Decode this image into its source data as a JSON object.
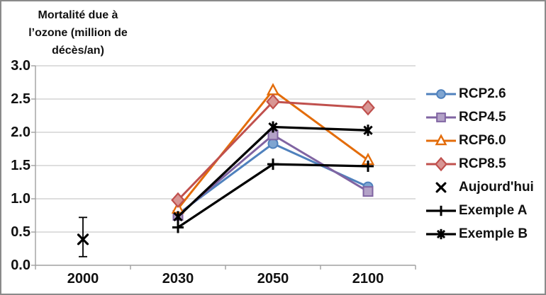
{
  "chart_data": {
    "type": "line",
    "title": "Mortalité due à l’ozone (million de décès/an)",
    "title_lines": [
      "Mortalité due à",
      "l’ozone (million de",
      "décès/an)"
    ],
    "categories": [
      "2000",
      "2030",
      "2050",
      "2100"
    ],
    "xlabel": "",
    "ylabel": "Mortalité due à l’ozone (million de décès/an)",
    "ylim": [
      0.0,
      3.0
    ],
    "ytick_step": 0.5,
    "yticks": [
      "3.0",
      "2.5",
      "2.0",
      "1.5",
      "1.0",
      "0.5",
      "0.0"
    ],
    "grid": true,
    "legend_position": "right",
    "series": [
      {
        "name": "RCP2.6",
        "color": "#4F81BD",
        "marker": "circle",
        "marker_fill": "#7FA5D1",
        "line": true,
        "values": [
          null,
          0.77,
          1.83,
          1.18
        ]
      },
      {
        "name": "RCP4.5",
        "color": "#8064A2",
        "marker": "square",
        "marker_fill": "#B3A2C7",
        "line": true,
        "values": [
          null,
          0.75,
          1.96,
          1.11
        ]
      },
      {
        "name": "RCP6.0",
        "color": "#E36C0A",
        "marker": "triangle",
        "marker_fill": "#FFFFFF",
        "line": true,
        "values": [
          null,
          0.85,
          2.63,
          1.58
        ]
      },
      {
        "name": "RCP8.5",
        "color": "#C0504D",
        "marker": "diamond",
        "marker_fill": "#D99694",
        "line": true,
        "values": [
          null,
          0.98,
          2.46,
          2.37
        ]
      },
      {
        "name": "Aujourd'hui",
        "color": "#000000",
        "marker": "x",
        "marker_fill": "#000000",
        "line": false,
        "values": [
          0.39,
          null,
          null,
          null
        ],
        "error_bars": [
          {
            "index": 0,
            "low": 0.13,
            "high": 0.72
          }
        ]
      },
      {
        "name": "Exemple A",
        "color": "#000000",
        "marker": "plus",
        "marker_fill": "#000000",
        "line": true,
        "values": [
          null,
          0.57,
          1.52,
          1.49
        ]
      },
      {
        "name": "Exemple B",
        "color": "#000000",
        "marker": "asterisk",
        "marker_fill": "#000000",
        "line": true,
        "values": [
          null,
          0.73,
          2.08,
          2.03
        ]
      }
    ]
  },
  "colors": {
    "background": "#FFFFFF",
    "grid": "#C9C9C9",
    "axis": "#A0A0A0",
    "border": "#8A8A8A",
    "text": "#111111"
  }
}
